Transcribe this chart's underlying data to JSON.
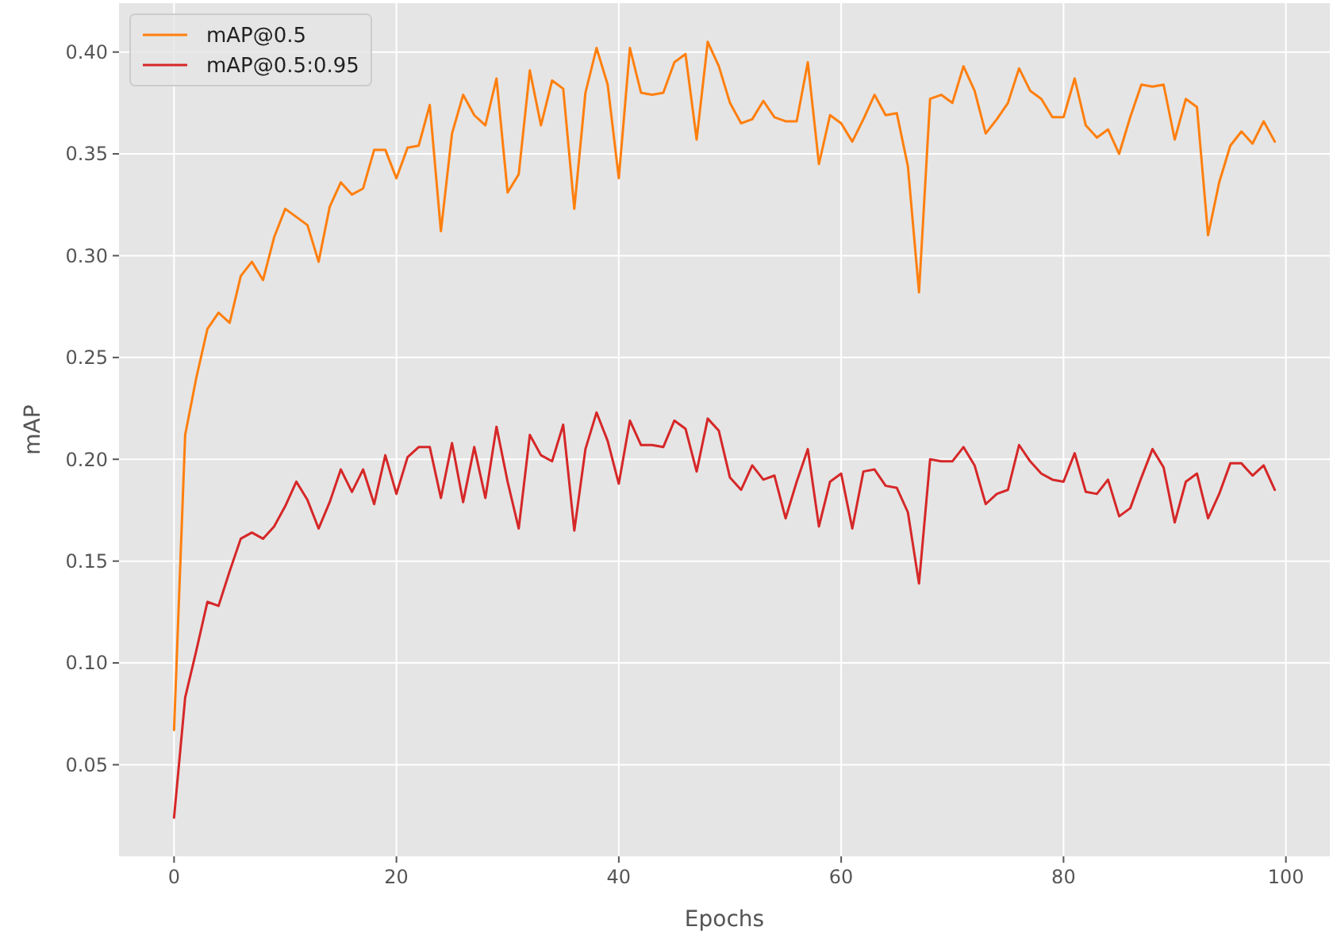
{
  "chart_data": {
    "type": "line",
    "xlabel": "Epochs",
    "ylabel": "mAP",
    "x": [
      0,
      1,
      2,
      3,
      4,
      5,
      6,
      7,
      8,
      9,
      10,
      11,
      12,
      13,
      14,
      15,
      16,
      17,
      18,
      19,
      20,
      21,
      22,
      23,
      24,
      25,
      26,
      27,
      28,
      29,
      30,
      31,
      32,
      33,
      34,
      35,
      36,
      37,
      38,
      39,
      40,
      41,
      42,
      43,
      44,
      45,
      46,
      47,
      48,
      49,
      50,
      51,
      52,
      53,
      54,
      55,
      56,
      57,
      58,
      59,
      60,
      61,
      62,
      63,
      64,
      65,
      66,
      67,
      68,
      69,
      70,
      71,
      72,
      73,
      74,
      75,
      76,
      77,
      78,
      79,
      80,
      81,
      82,
      83,
      84,
      85,
      86,
      87,
      88,
      89,
      90,
      91,
      92,
      93,
      94,
      95,
      96,
      97,
      98,
      99
    ],
    "series": [
      {
        "name": "mAP@0.5",
        "color": "#ff7f0e",
        "values": [
          0.067,
          0.212,
          0.24,
          0.264,
          0.272,
          0.267,
          0.29,
          0.297,
          0.288,
          0.309,
          0.323,
          0.319,
          0.315,
          0.297,
          0.324,
          0.336,
          0.33,
          0.333,
          0.352,
          0.352,
          0.338,
          0.353,
          0.354,
          0.374,
          0.312,
          0.36,
          0.379,
          0.369,
          0.364,
          0.387,
          0.331,
          0.34,
          0.391,
          0.364,
          0.386,
          0.382,
          0.323,
          0.38,
          0.402,
          0.384,
          0.338,
          0.402,
          0.38,
          0.379,
          0.38,
          0.395,
          0.399,
          0.357,
          0.405,
          0.393,
          0.375,
          0.365,
          0.367,
          0.376,
          0.368,
          0.366,
          0.366,
          0.395,
          0.345,
          0.369,
          0.365,
          0.356,
          0.367,
          0.379,
          0.369,
          0.37,
          0.344,
          0.282,
          0.377,
          0.379,
          0.375,
          0.393,
          0.381,
          0.36,
          0.367,
          0.375,
          0.392,
          0.381,
          0.377,
          0.368,
          0.368,
          0.387,
          0.364,
          0.358,
          0.362,
          0.35,
          0.368,
          0.384,
          0.383,
          0.384,
          0.357,
          0.377,
          0.373,
          0.31,
          0.336,
          0.354,
          0.361,
          0.355,
          0.366,
          0.356
        ]
      },
      {
        "name": "mAP@0.5:0.95",
        "color": "#d62728",
        "values": [
          0.024,
          0.083,
          0.106,
          0.13,
          0.128,
          0.145,
          0.161,
          0.164,
          0.161,
          0.167,
          0.177,
          0.189,
          0.18,
          0.166,
          0.179,
          0.195,
          0.184,
          0.195,
          0.178,
          0.202,
          0.183,
          0.201,
          0.206,
          0.206,
          0.181,
          0.208,
          0.179,
          0.206,
          0.181,
          0.216,
          0.189,
          0.166,
          0.212,
          0.202,
          0.199,
          0.217,
          0.165,
          0.205,
          0.223,
          0.209,
          0.188,
          0.219,
          0.207,
          0.207,
          0.206,
          0.219,
          0.215,
          0.194,
          0.22,
          0.214,
          0.191,
          0.185,
          0.197,
          0.19,
          0.192,
          0.171,
          0.189,
          0.205,
          0.167,
          0.189,
          0.193,
          0.166,
          0.194,
          0.195,
          0.187,
          0.186,
          0.174,
          0.139,
          0.2,
          0.199,
          0.199,
          0.206,
          0.197,
          0.178,
          0.183,
          0.185,
          0.207,
          0.199,
          0.193,
          0.19,
          0.189,
          0.203,
          0.184,
          0.183,
          0.19,
          0.172,
          0.176,
          0.191,
          0.205,
          0.196,
          0.169,
          0.189,
          0.193,
          0.171,
          0.183,
          0.198,
          0.198,
          0.192,
          0.197,
          0.185
        ]
      }
    ],
    "xlim": [
      -4.95,
      103.95
    ],
    "xticks": [
      0,
      20,
      40,
      60,
      80,
      100
    ],
    "ylim": [
      0.005,
      0.424
    ],
    "yticks": [
      {
        "value": 0.05,
        "label": "0.05"
      },
      {
        "value": 0.1,
        "label": "0.10"
      },
      {
        "value": 0.15,
        "label": "0.15"
      },
      {
        "value": 0.2,
        "label": "0.20"
      },
      {
        "value": 0.25,
        "label": "0.25"
      },
      {
        "value": 0.3,
        "label": "0.30"
      },
      {
        "value": 0.35,
        "label": "0.35"
      },
      {
        "value": 0.4,
        "label": "0.40"
      }
    ],
    "grid": true,
    "legend": "top left",
    "line_style": "solid",
    "marker": "none"
  }
}
